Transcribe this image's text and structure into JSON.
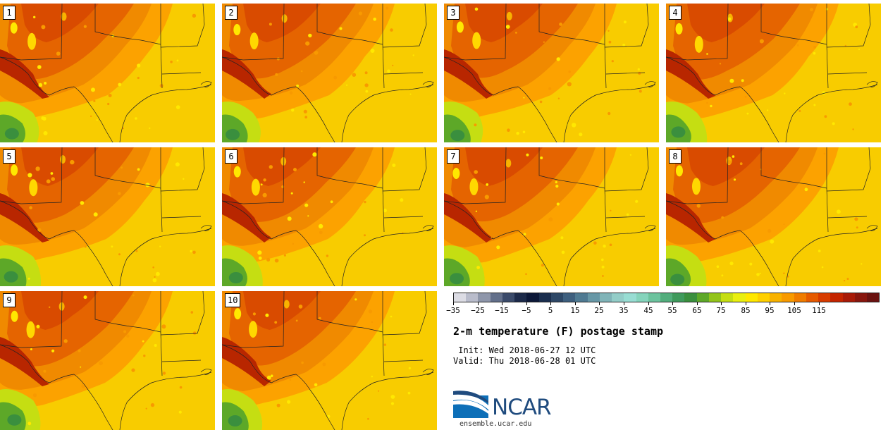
{
  "figure": {
    "title": "2-m temperature (F) postage stamp",
    "init_line": " Init: Wed 2018-06-27 12 UTC",
    "valid_line": "Valid: Thu 2018-06-28 01 UTC",
    "logo_text": "NCAR",
    "url": "ensemble.ucar.edu"
  },
  "members": [
    "1",
    "2",
    "3",
    "4",
    "5",
    "6",
    "7",
    "8",
    "9",
    "10"
  ],
  "colorbar": {
    "label": "2-m temperature (F)",
    "colors": [
      "#dcdce4",
      "#b9bccb",
      "#8e96aa",
      "#626f8a",
      "#3a4a6a",
      "#1c2a4a",
      "#0c1838",
      "#1a2e4e",
      "#2d4766",
      "#3e5f7e",
      "#4f7a92",
      "#6797a6",
      "#80b4b8",
      "#93cdc8",
      "#98ddd3",
      "#85d4bc",
      "#6cc39e",
      "#52ad7c",
      "#3f9a5c",
      "#3a8f3e",
      "#5da828",
      "#92c41a",
      "#c5de12",
      "#e9ef10",
      "#ffe800",
      "#ffd000",
      "#f8b200",
      "#f89a00",
      "#f07c00",
      "#e65a00",
      "#d83c00",
      "#c42400",
      "#a81a08",
      "#88160e",
      "#6a1210"
    ],
    "tick_labels": [
      "−35",
      "−25",
      "−15",
      "−5",
      "5",
      "15",
      "25",
      "35",
      "45",
      "55",
      "65",
      "75",
      "85",
      "95",
      "105",
      "115"
    ]
  }
}
